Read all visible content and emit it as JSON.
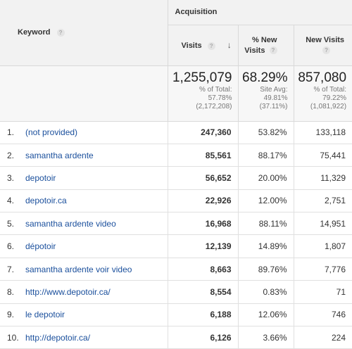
{
  "headers": {
    "keyword": "Keyword",
    "acquisition": "Acquisition",
    "visits": "Visits",
    "pct_new_visits_line1": "% New",
    "pct_new_visits_line2": "Visits",
    "new_visits": "New Visits",
    "help_glyph": "?",
    "sort_glyph": "↓"
  },
  "totals": {
    "visits": {
      "value": "1,255,079",
      "l1": "% of Total:",
      "l2": "57.78%",
      "l3": "(2,172,208)"
    },
    "pct_new": {
      "value": "68.29%",
      "l1": "Site Avg:",
      "l2": "49.81%",
      "l3": "(37.11%)"
    },
    "new_visits": {
      "value": "857,080",
      "l1": "% of Total:",
      "l2": "79.22%",
      "l3": "(1,081,922)"
    }
  },
  "rows": [
    {
      "idx": "1.",
      "keyword": "(not provided)",
      "visits": "247,360",
      "pct_new": "53.82%",
      "new_visits": "133,118"
    },
    {
      "idx": "2.",
      "keyword": "samantha ardente",
      "visits": "85,561",
      "pct_new": "88.17%",
      "new_visits": "75,441"
    },
    {
      "idx": "3.",
      "keyword": "depotoir",
      "visits": "56,652",
      "pct_new": "20.00%",
      "new_visits": "11,329"
    },
    {
      "idx": "4.",
      "keyword": "depotoir.ca",
      "visits": "22,926",
      "pct_new": "12.00%",
      "new_visits": "2,751"
    },
    {
      "idx": "5.",
      "keyword": "samantha ardente video",
      "visits": "16,968",
      "pct_new": "88.11%",
      "new_visits": "14,951"
    },
    {
      "idx": "6.",
      "keyword": "dépotoir",
      "visits": "12,139",
      "pct_new": "14.89%",
      "new_visits": "1,807"
    },
    {
      "idx": "7.",
      "keyword": "samantha ardente voir video",
      "visits": "8,663",
      "pct_new": "89.76%",
      "new_visits": "7,776"
    },
    {
      "idx": "8.",
      "keyword": "http://www.depotoir.ca/",
      "visits": "8,554",
      "pct_new": "0.83%",
      "new_visits": "71"
    },
    {
      "idx": "9.",
      "keyword": "le depotoir",
      "visits": "6,188",
      "pct_new": "12.06%",
      "new_visits": "746"
    },
    {
      "idx": "10.",
      "keyword": "http://depotoir.ca/",
      "visits": "6,126",
      "pct_new": "3.66%",
      "new_visits": "224"
    }
  ],
  "colors": {
    "link": "#1a4f9c",
    "header_bg": "#f2f2f2",
    "totals_bg": "#f7f7f7"
  }
}
